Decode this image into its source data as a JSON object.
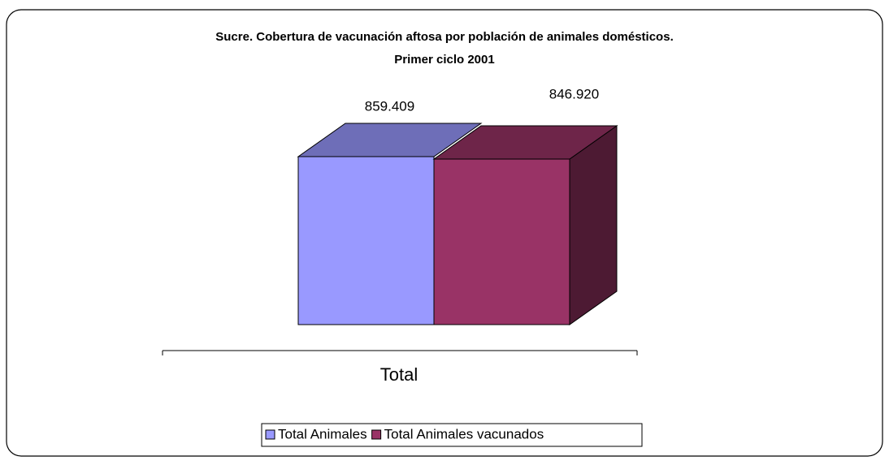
{
  "chart_data": {
    "type": "bar3d",
    "title": "Sucre. Cobertura de vacunación aftosa por población de animales domésticos.",
    "subtitle": "Primer ciclo 2001",
    "categories": [
      "Total"
    ],
    "series": [
      {
        "name": "Total Animales",
        "color": "#9999ff",
        "values": [
          859409
        ],
        "value_labels": [
          "859.409"
        ]
      },
      {
        "name": "Total Animales vacunados",
        "color": "#993366",
        "values": [
          846920
        ],
        "value_labels": [
          "846.920"
        ]
      }
    ],
    "legend": "bottom"
  }
}
